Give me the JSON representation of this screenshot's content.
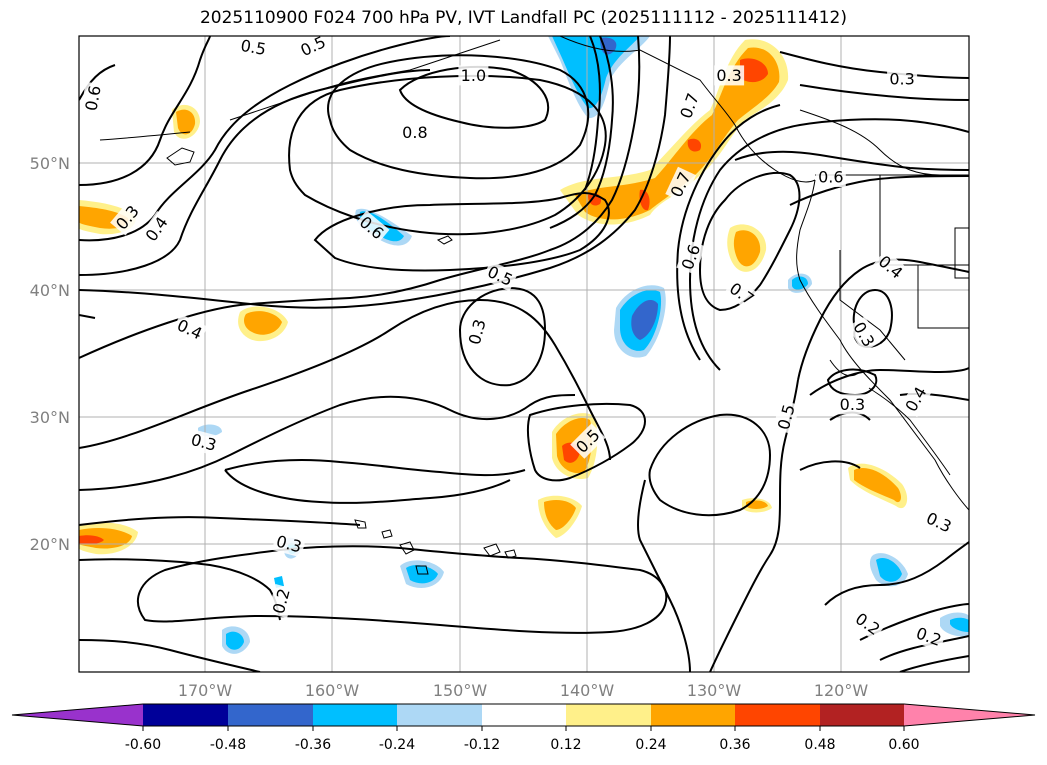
{
  "title": "2025110900 F024 700 hPa PV, IVT Landfall PC (2025111112 - 2025111412)",
  "map": {
    "lat_labels": [
      "50°N",
      "40°N",
      "30°N",
      "20°N"
    ],
    "lon_labels": [
      "170°W",
      "160°W",
      "150°W",
      "140°W",
      "130°W",
      "120°W"
    ]
  },
  "contour_labels": [
    {
      "text": "0.5",
      "lon": -166.2,
      "lat": 59.1,
      "rot": 10
    },
    {
      "text": "0.5",
      "lon": -161.5,
      "lat": 59.2,
      "rot": -25
    },
    {
      "text": "1.0",
      "lon": -148.9,
      "lat": 56.9,
      "rot": 0
    },
    {
      "text": "0.3",
      "lon": -128.8,
      "lat": 56.9,
      "rot": 0
    },
    {
      "text": "0.3",
      "lon": -115.2,
      "lat": 56.6,
      "rot": 0
    },
    {
      "text": "0.6",
      "lon": -178.8,
      "lat": 55.1,
      "rot": -80
    },
    {
      "text": "0.8",
      "lon": -153.5,
      "lat": 52.4,
      "rot": 0
    },
    {
      "text": "0.7",
      "lon": -131.9,
      "lat": 54.5,
      "rot": -70
    },
    {
      "text": "0.7",
      "lon": -132.6,
      "lat": 48.3,
      "rot": -65
    },
    {
      "text": "0.6",
      "lon": -120.8,
      "lat": 48.9,
      "rot": 0
    },
    {
      "text": "0.3",
      "lon": -176.1,
      "lat": 45.7,
      "rot": -50
    },
    {
      "text": "0.4",
      "lon": -173.8,
      "lat": 44.8,
      "rot": -55
    },
    {
      "text": "0.6",
      "lon": -156.9,
      "lat": 44.9,
      "rot": 40
    },
    {
      "text": "0.5",
      "lon": -146.8,
      "lat": 41.1,
      "rot": 25
    },
    {
      "text": "0.6",
      "lon": -131.8,
      "lat": 42.6,
      "rot": -70
    },
    {
      "text": "0.4",
      "lon": -116.1,
      "lat": 41.8,
      "rot": 40
    },
    {
      "text": "0.7",
      "lon": -127.8,
      "lat": 39.7,
      "rot": 35
    },
    {
      "text": "0.4",
      "lon": -171.2,
      "lat": 36.9,
      "rot": 25
    },
    {
      "text": "0.3",
      "lon": -148.6,
      "lat": 36.7,
      "rot": -75
    },
    {
      "text": "0.3",
      "lon": -118.2,
      "lat": 36.5,
      "rot": 60
    },
    {
      "text": "0.3",
      "lon": -119.1,
      "lat": 31.0,
      "rot": 0
    },
    {
      "text": "0.4",
      "lon": -114.1,
      "lat": 31.4,
      "rot": -60
    },
    {
      "text": "0.5",
      "lon": -124.3,
      "lat": 30.0,
      "rot": -75
    },
    {
      "text": "0.3",
      "lon": -170.1,
      "lat": 28.0,
      "rot": 15
    },
    {
      "text": "0.5",
      "lon": -139.9,
      "lat": 28.1,
      "rot": -45
    },
    {
      "text": "0.3",
      "lon": -163.4,
      "lat": 20.0,
      "rot": 15
    },
    {
      "text": "0.3",
      "lon": -112.3,
      "lat": 21.7,
      "rot": 25
    },
    {
      "text": "0.2",
      "lon": -164.0,
      "lat": 15.5,
      "rot": -75
    },
    {
      "text": "0.2",
      "lon": -117.9,
      "lat": 13.7,
      "rot": 35
    },
    {
      "text": "0.2",
      "lon": -113.1,
      "lat": 12.7,
      "rot": 20
    }
  ],
  "colorbar": {
    "ticks": [
      "-0.60",
      "-0.48",
      "-0.36",
      "-0.24",
      "-0.12",
      "0.12",
      "0.24",
      "0.36",
      "0.48",
      "0.60"
    ],
    "colors": [
      "#9932cc",
      "#000099",
      "#3366cc",
      "#00bfff",
      "#add8f5",
      "#ffffff",
      "#fff08a",
      "#ffa500",
      "#ff4500",
      "#b22222",
      "#ff82ab"
    ]
  },
  "shading": {
    "palette": {
      "pos1": "#fff08a",
      "pos2": "#ffa500",
      "pos3": "#ff4500",
      "neg1": "#add8f5",
      "neg2": "#00bfff",
      "neg3": "#3366cc"
    }
  }
}
